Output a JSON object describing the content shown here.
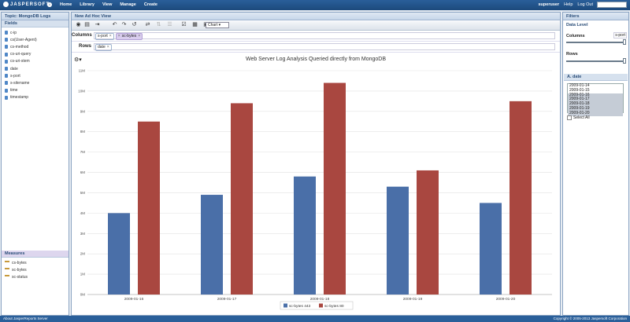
{
  "topbar": {
    "logo_text": "JASPERSOFT",
    "nav": [
      "Home",
      "Library",
      "View",
      "Manage",
      "Create"
    ],
    "user": "superuser",
    "help": "Help",
    "logout": "Log Out"
  },
  "left": {
    "topic_title": "Topic: MongoDB Logs",
    "fields_header": "Fields",
    "fields": [
      "c-ip",
      "cs(User-Agent)",
      "cs-method",
      "cs-uri-query",
      "cs-uri-stem",
      "date",
      "s-port",
      "s-sitename",
      "time",
      "timestamp"
    ],
    "measures_header": "Measures",
    "measures": [
      "cs-bytes",
      "sc-bytes",
      "sc-status"
    ]
  },
  "center": {
    "title": "New Ad Hoc View",
    "chart_type": "Chart",
    "columns_label": "Columns",
    "rows_label": "Rows",
    "column_tags": [
      "s-port",
      "sc-bytes"
    ],
    "row_tags": [
      "date"
    ]
  },
  "filters": {
    "title": "Filters",
    "data_level": "Data Level",
    "columns_label": "Columns",
    "columns_value": "s-port",
    "rows_label": "Rows",
    "filter_name": "A. date",
    "dates": [
      "2009-01-14",
      "2009-01-15",
      "2009-01-16",
      "2009-01-17",
      "2009-01-18",
      "2009-01-19",
      "2009-01-20"
    ],
    "selected_dates": [
      "2009-01-16",
      "2009-01-17",
      "2009-01-18",
      "2009-01-19",
      "2009-01-20"
    ],
    "select_all": "Select All"
  },
  "footer": {
    "left": "About JasperReports Server",
    "right": "Copyright © 2005-2013 Jaspersoft Corporation"
  },
  "chart_data": {
    "type": "bar",
    "title": "Web Server Log Analysis Queried directly from MongoDB",
    "categories": [
      "2009-01-16",
      "2009-01-17",
      "2009-01-18",
      "2009-01-19",
      "2009-01-20"
    ],
    "series": [
      {
        "name": "sc-bytes 443",
        "values": [
          4.0,
          4.9,
          5.8,
          5.3,
          4.5
        ],
        "color": "#4a6fa8"
      },
      {
        "name": "sc-bytes 80",
        "values": [
          8.5,
          9.4,
          10.4,
          6.1,
          9.5
        ],
        "color": "#a94740"
      }
    ],
    "yticks": [
      "0M",
      "1M",
      "2M",
      "3M",
      "4M",
      "5M",
      "6M",
      "7M",
      "8M",
      "9M",
      "10M",
      "11M"
    ],
    "ylim": [
      0,
      11
    ],
    "grid": true,
    "legend": "bottom-center"
  }
}
